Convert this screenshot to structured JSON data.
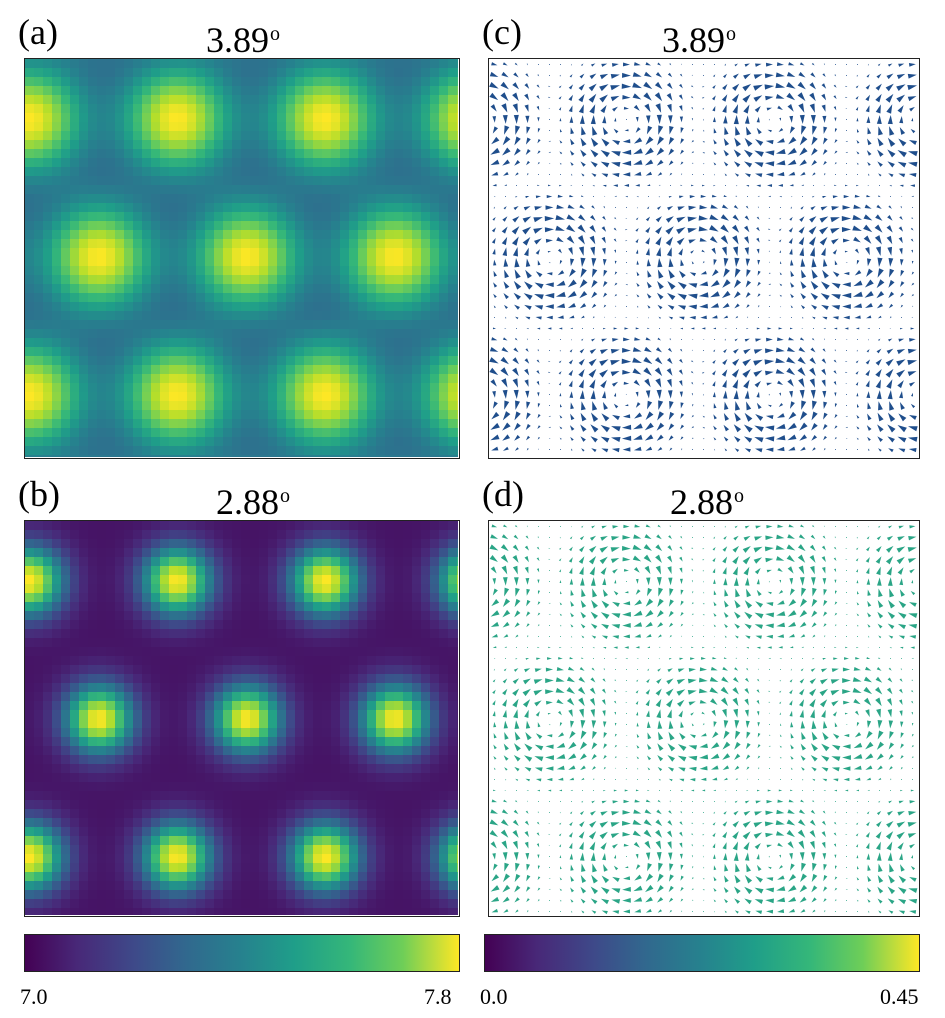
{
  "panels": [
    {
      "id": "a",
      "label": "(a)",
      "title": "3.89",
      "title_sup": "o",
      "kind": "heatmap",
      "twist_angle": 3.89
    },
    {
      "id": "c",
      "label": "(c)",
      "title": "3.89",
      "title_sup": "o",
      "kind": "vector",
      "twist_angle": 3.89
    },
    {
      "id": "b",
      "label": "(b)",
      "title": "2.88",
      "title_sup": "o",
      "kind": "heatmap",
      "twist_angle": 2.88
    },
    {
      "id": "d",
      "label": "(d)",
      "title": "2.88",
      "title_sup": "o",
      "kind": "vector",
      "twist_angle": 2.88
    }
  ],
  "colorbars": [
    {
      "id": "left",
      "min_label": "7.0",
      "max_label": "7.8",
      "min": 7.0,
      "max": 7.8,
      "colormap": "viridis"
    },
    {
      "id": "right",
      "min_label": "0.0",
      "max_label": "0.45",
      "min": 0.0,
      "max": 0.45,
      "colormap": "viridis"
    }
  ],
  "colors": {
    "arrow_c": "#1f4e8c",
    "arrow_d": "#2aa586",
    "frame": "#222222"
  }
}
